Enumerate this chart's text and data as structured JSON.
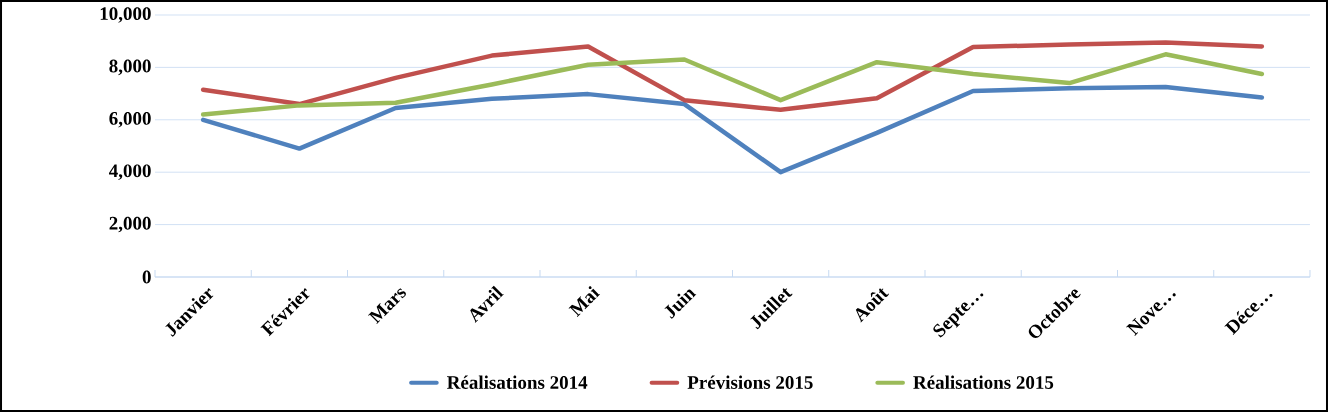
{
  "chart_data": {
    "type": "line",
    "categories": [
      "Janvier",
      "Février",
      "Mars",
      "Avril",
      "Mai",
      "Juin",
      "Juillet",
      "Août",
      "Septe…",
      "Octobre",
      "Nove…",
      "Déce…"
    ],
    "series": [
      {
        "name": "Réalisations  2014",
        "color": "#4f81bd",
        "values": [
          6000,
          4900,
          6450,
          6800,
          6980,
          6600,
          4000,
          5500,
          7100,
          7200,
          7250,
          6850
        ]
      },
      {
        "name": "Prévisions   2015",
        "color": "#c0504d",
        "values": [
          7150,
          6600,
          7600,
          8450,
          8800,
          6750,
          6380,
          6820,
          8780,
          8870,
          8950,
          8800
        ]
      },
      {
        "name": "Réalisations  2015",
        "color": "#9bbb59",
        "values": [
          6200,
          6550,
          6650,
          7350,
          8100,
          8300,
          6750,
          8200,
          7750,
          7400,
          8500,
          7750
        ]
      }
    ],
    "ylim": [
      0,
      10000
    ],
    "yticks": [
      0,
      {
        "value": 2000,
        "label": "2,000"
      },
      {
        "value": 4000,
        "label": "4,000"
      },
      {
        "value": 6000,
        "label": "6,000"
      },
      {
        "value": 8000,
        "label": "8,000"
      },
      {
        "value": 10000,
        "label": "10,000"
      }
    ],
    "grid": "y",
    "legend": "bottom"
  }
}
